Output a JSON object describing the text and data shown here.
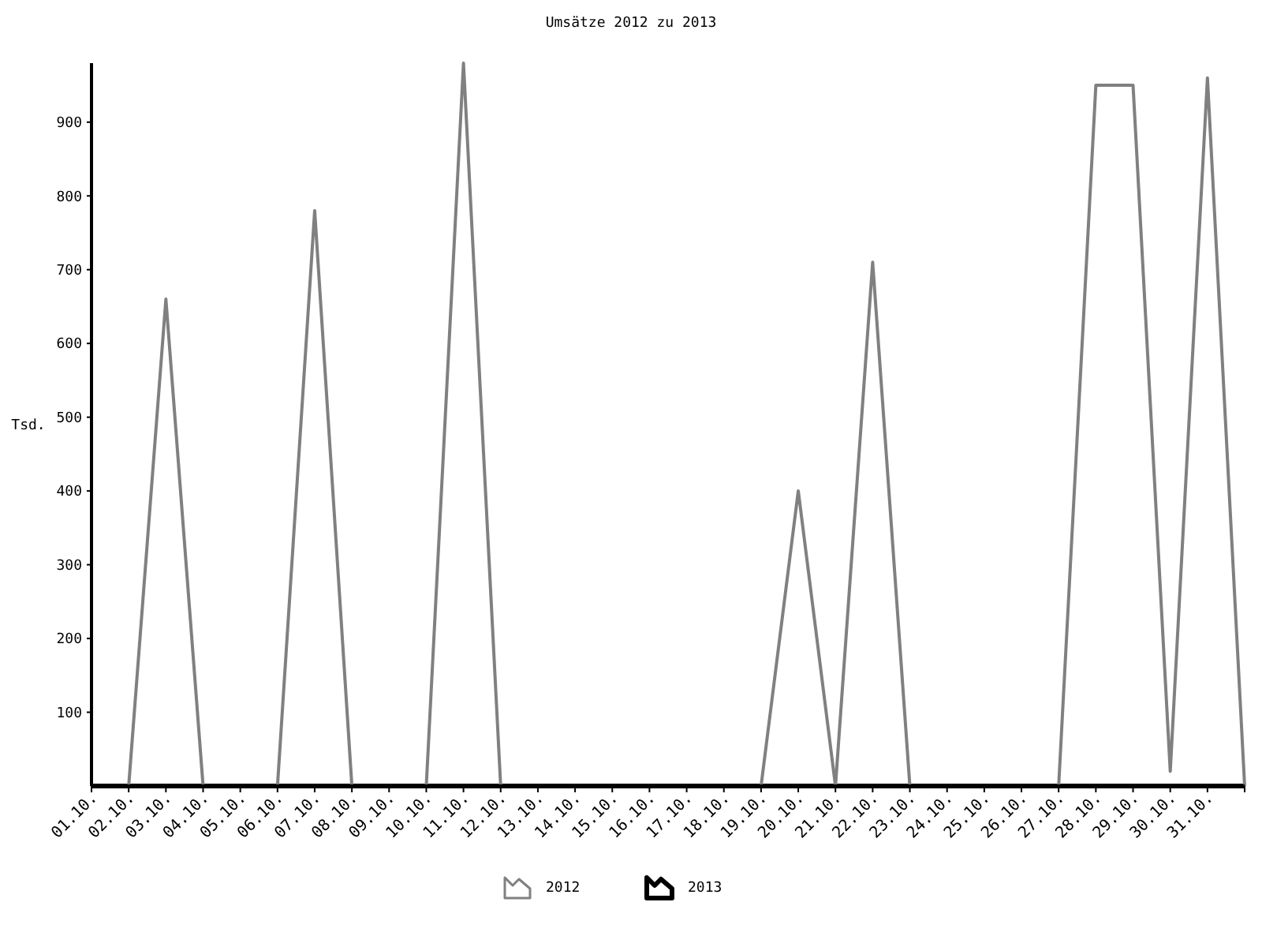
{
  "chart_data": {
    "type": "line",
    "title": "Umsätze 2012 zu 2013",
    "ylabel": "Tsd.",
    "categories": [
      "01.10.",
      "02.10.",
      "03.10.",
      "04.10.",
      "05.10.",
      "06.10.",
      "07.10.",
      "08.10.",
      "09.10.",
      "10.10.",
      "11.10.",
      "12.10.",
      "13.10.",
      "14.10.",
      "15.10.",
      "16.10.",
      "17.10.",
      "18.10.",
      "19.10.",
      "20.10.",
      "21.10.",
      "22.10.",
      "23.10.",
      "24.10.",
      "25.10.",
      "26.10.",
      "27.10.",
      "28.10.",
      "29.10.",
      "30.10.",
      "31.10.",
      null
    ],
    "series": [
      {
        "name": "2013",
        "color": "#000000",
        "values": [
          0,
          0,
          0,
          0,
          0,
          0,
          0,
          0,
          0,
          0,
          0,
          0,
          0,
          0,
          0,
          0,
          0,
          0,
          0,
          0,
          0,
          0,
          0,
          0,
          0,
          0,
          0,
          0,
          0,
          0,
          0,
          0
        ]
      },
      {
        "name": "2012",
        "color": "#808080",
        "values": [
          0,
          0,
          660,
          0,
          0,
          0,
          780,
          0,
          0,
          0,
          980,
          0,
          0,
          0,
          0,
          0,
          0,
          0,
          0,
          400,
          0,
          710,
          0,
          0,
          0,
          0,
          0,
          950,
          950,
          20,
          960,
          0
        ]
      }
    ],
    "ylim": [
      0,
      980
    ],
    "yticks": [
      100,
      200,
      300,
      400,
      500,
      600,
      700,
      800,
      900
    ],
    "legend": "bottom",
    "grid": false,
    "marker": "none",
    "line_style": "solid"
  }
}
